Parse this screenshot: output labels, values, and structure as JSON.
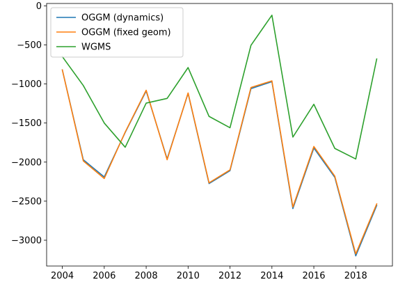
{
  "chart_data": {
    "type": "line",
    "title": "",
    "xlabel": "",
    "ylabel": "",
    "x": [
      2004,
      2005,
      2006,
      2007,
      2008,
      2009,
      2010,
      2011,
      2012,
      2013,
      2014,
      2015,
      2016,
      2017,
      2018,
      2019
    ],
    "xlim": [
      2003.25,
      2019.75
    ],
    "ylim": [
      -3330,
      30
    ],
    "xticks": [
      2004,
      2006,
      2008,
      2010,
      2012,
      2014,
      2016,
      2018
    ],
    "xtick_labels": [
      "2004",
      "2006",
      "2008",
      "2010",
      "2012",
      "2014",
      "2016",
      "2018"
    ],
    "yticks": [
      0,
      -500,
      -1000,
      -1500,
      -2000,
      -2500,
      -3000
    ],
    "ytick_labels": [
      "0",
      "−500",
      "−1000",
      "−1500",
      "−2000",
      "−2500",
      "−3000"
    ],
    "grid": false,
    "legend_location": "upper-left",
    "series": [
      {
        "name": "OGGM (dynamics)",
        "color": "#1f77b4",
        "values": [
          -820,
          -1970,
          -2190,
          -1620,
          -1090,
          -1960,
          -1120,
          -2275,
          -2110,
          -1060,
          -970,
          -2595,
          -1820,
          -2195,
          -3200,
          -2555
        ]
      },
      {
        "name": "OGGM (fixed geom)",
        "color": "#ff7f0e",
        "values": [
          -820,
          -1985,
          -2210,
          -1615,
          -1080,
          -1970,
          -1115,
          -2265,
          -2100,
          -1045,
          -960,
          -2575,
          -1800,
          -2180,
          -3175,
          -2535
        ]
      },
      {
        "name": "WGMS",
        "color": "#2ca02c",
        "values": [
          -650,
          -1020,
          -1500,
          -1810,
          -1245,
          -1185,
          -790,
          -1415,
          -1560,
          -505,
          -120,
          -1680,
          -1260,
          -1825,
          -1960,
          -680
        ]
      }
    ]
  }
}
